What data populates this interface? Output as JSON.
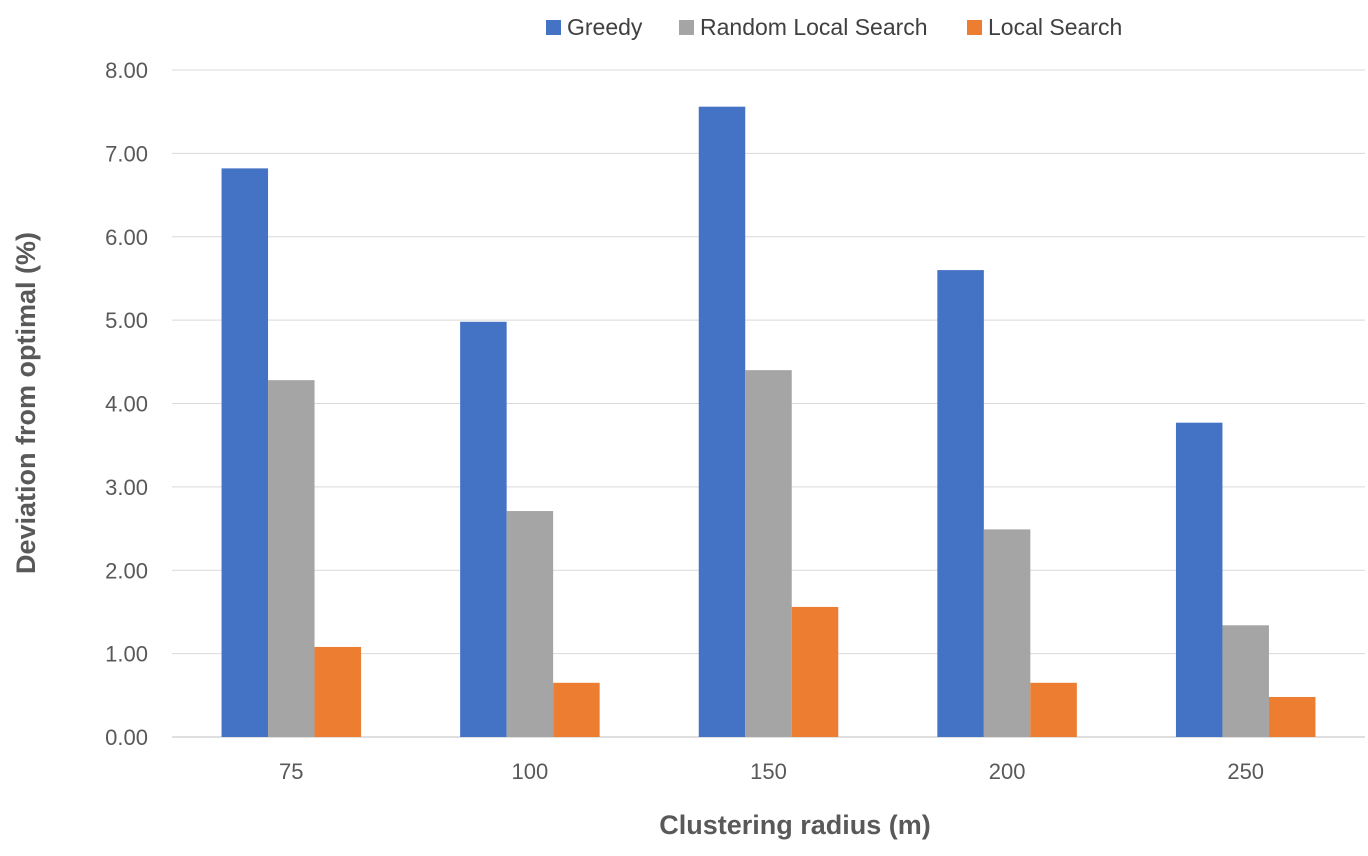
{
  "chart_data": {
    "type": "bar",
    "xlabel": "Clustering radius (m)",
    "ylabel": "Deviation from optimal (%)",
    "categories": [
      "75",
      "100",
      "150",
      "200",
      "250"
    ],
    "ylim": [
      0,
      8
    ],
    "yticks": [
      "0.00",
      "1.00",
      "2.00",
      "3.00",
      "4.00",
      "5.00",
      "6.00",
      "7.00",
      "8.00"
    ],
    "grid": true,
    "legend_position": "top",
    "series": [
      {
        "name": "Greedy",
        "color": "#4472C4",
        "values": [
          6.82,
          4.98,
          7.56,
          5.6,
          3.77
        ]
      },
      {
        "name": "Random Local Search",
        "color": "#A5A5A5",
        "values": [
          4.28,
          2.71,
          4.4,
          2.49,
          1.34
        ]
      },
      {
        "name": "Local Search",
        "color": "#ED7D31",
        "values": [
          1.08,
          0.65,
          1.56,
          0.65,
          0.48
        ]
      }
    ]
  }
}
